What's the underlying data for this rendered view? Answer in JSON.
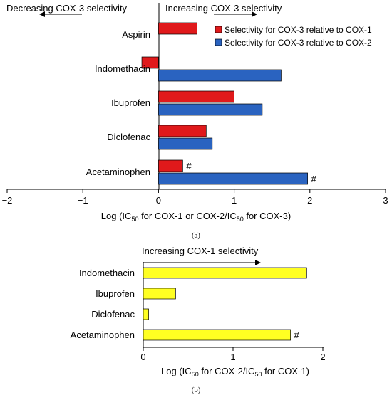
{
  "chart_data": [
    {
      "type": "bar",
      "orientation": "horizontal",
      "panel_label": "(a)",
      "categories": [
        "Aspirin",
        "Indomethacin",
        "Ibuprofen",
        "Diclofenac",
        "Acetaminophen"
      ],
      "series": [
        {
          "name": "Selectivity for COX-3 relative to COX-1",
          "color": "#e0191b",
          "values": [
            0.51,
            -0.22,
            1.0,
            0.63,
            0.32
          ]
        },
        {
          "name": "Selectivity for COX-3 relative to COX-2",
          "color": "#2a63c0",
          "values": [
            null,
            1.62,
            1.37,
            0.71,
            1.97
          ]
        }
      ],
      "markers": [
        {
          "category": "Acetaminophen",
          "series": 0,
          "text": "#"
        },
        {
          "category": "Acetaminophen",
          "series": 1,
          "text": "#"
        }
      ],
      "xlim": [
        -2,
        3
      ],
      "xticks": [
        "−2",
        "−1",
        "0",
        "1",
        "2",
        "3"
      ],
      "xlabel": {
        "pre": "Log (IC",
        "sub1": "50",
        "mid": " for COX-1 or COX-2/IC",
        "sub2": "50",
        "post": " for COX-3)"
      },
      "arrows": {
        "left": "Decreasing COX-3 selectivity",
        "right": "Increasing COX-3 selectivity"
      },
      "legend_position": "top-right"
    },
    {
      "type": "bar",
      "orientation": "horizontal",
      "panel_label": "(b)",
      "categories": [
        "Indomethacin",
        "Ibuprofen",
        "Diclofenac",
        "Acetaminophen"
      ],
      "series": [
        {
          "color": "#ffff22",
          "values": [
            1.82,
            0.36,
            0.06,
            1.64
          ]
        }
      ],
      "markers": [
        {
          "category": "Acetaminophen",
          "series": 0,
          "text": "#"
        }
      ],
      "xlim": [
        0,
        2
      ],
      "xticks": [
        "0",
        "1",
        "2"
      ],
      "xlabel": {
        "pre": "Log (IC",
        "sub1": "50",
        "mid": " for COX-2/IC",
        "sub2": "50",
        "post": " for COX-1)"
      },
      "arrows": {
        "right": "Increasing COX-1 selectivity"
      }
    }
  ]
}
